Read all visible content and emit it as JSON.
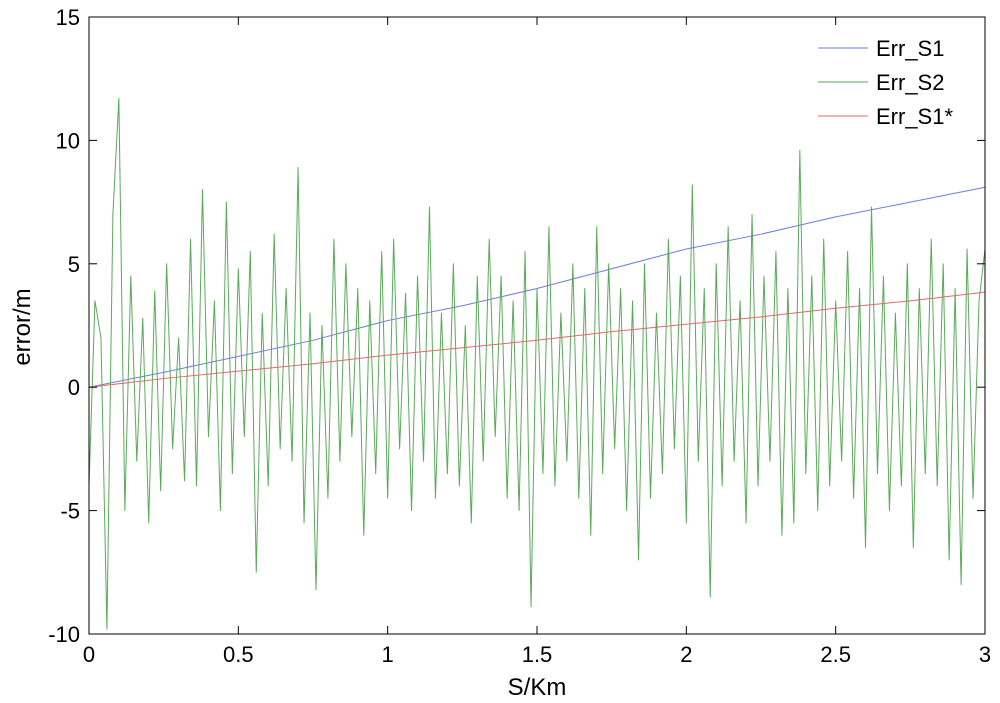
{
  "chart_data": {
    "type": "line",
    "xlabel": "S/Km",
    "ylabel": "error/m",
    "xlim": [
      0,
      3
    ],
    "ylim": [
      -10,
      15
    ],
    "xticks": [
      0,
      0.5,
      1,
      1.5,
      2,
      2.5,
      3
    ],
    "yticks": [
      -10,
      -5,
      0,
      5,
      10,
      15
    ],
    "xtick_labels": [
      "0",
      "0.5",
      "1",
      "1.5",
      "2",
      "2.5",
      "3"
    ],
    "ytick_labels": [
      "-10",
      "-5",
      "0",
      "5",
      "10",
      "15"
    ],
    "grid": false,
    "legend_position": "top-right",
    "series": [
      {
        "name": "Err_S1",
        "color": "#6b7fd9",
        "x": [
          0,
          0.25,
          0.5,
          0.75,
          1.0,
          1.25,
          1.5,
          1.75,
          2.0,
          2.25,
          2.5,
          2.75,
          3.0
        ],
        "y": [
          0,
          0.6,
          1.25,
          1.9,
          2.7,
          3.3,
          4.0,
          4.8,
          5.6,
          6.2,
          6.9,
          7.5,
          8.1
        ]
      },
      {
        "name": "Err_S2",
        "color": "#5aaa5a",
        "x": [
          0,
          0.02,
          0.04,
          0.06,
          0.08,
          0.1,
          0.12,
          0.14,
          0.16,
          0.18,
          0.2,
          0.22,
          0.24,
          0.26,
          0.28,
          0.3,
          0.32,
          0.34,
          0.36,
          0.38,
          0.4,
          0.42,
          0.44,
          0.46,
          0.48,
          0.5,
          0.52,
          0.54,
          0.56,
          0.58,
          0.6,
          0.62,
          0.64,
          0.66,
          0.68,
          0.7,
          0.72,
          0.74,
          0.76,
          0.78,
          0.8,
          0.82,
          0.84,
          0.86,
          0.88,
          0.9,
          0.92,
          0.94,
          0.96,
          0.98,
          1.0,
          1.02,
          1.04,
          1.06,
          1.08,
          1.1,
          1.12,
          1.14,
          1.16,
          1.18,
          1.2,
          1.22,
          1.24,
          1.26,
          1.28,
          1.3,
          1.32,
          1.34,
          1.36,
          1.38,
          1.4,
          1.42,
          1.44,
          1.46,
          1.48,
          1.5,
          1.52,
          1.54,
          1.56,
          1.58,
          1.6,
          1.62,
          1.64,
          1.66,
          1.68,
          1.7,
          1.72,
          1.74,
          1.76,
          1.78,
          1.8,
          1.82,
          1.84,
          1.86,
          1.88,
          1.9,
          1.92,
          1.94,
          1.96,
          1.98,
          2.0,
          2.02,
          2.04,
          2.06,
          2.08,
          2.1,
          2.12,
          2.14,
          2.16,
          2.18,
          2.2,
          2.22,
          2.24,
          2.26,
          2.28,
          2.3,
          2.32,
          2.34,
          2.36,
          2.38,
          2.4,
          2.42,
          2.44,
          2.46,
          2.48,
          2.5,
          2.52,
          2.54,
          2.56,
          2.58,
          2.6,
          2.62,
          2.64,
          2.66,
          2.68,
          2.7,
          2.72,
          2.74,
          2.76,
          2.78,
          2.8,
          2.82,
          2.84,
          2.86,
          2.88,
          2.9,
          2.92,
          2.94,
          2.96,
          2.98,
          3.0
        ],
        "y": [
          -4.0,
          3.5,
          2.0,
          -9.8,
          7.0,
          11.7,
          -5.0,
          4.5,
          -3.0,
          2.8,
          -5.5,
          3.9,
          -4.2,
          5.0,
          -2.5,
          2.0,
          -3.8,
          6.0,
          -4.0,
          8.0,
          -2.0,
          3.5,
          -5.0,
          7.5,
          -3.5,
          4.8,
          -2.0,
          5.5,
          -7.5,
          3.0,
          -4.0,
          6.2,
          -2.5,
          4.0,
          -3.0,
          8.9,
          -5.5,
          3.0,
          -8.2,
          2.5,
          -4.5,
          6.0,
          -3.0,
          5.0,
          -2.0,
          4.0,
          -6.0,
          3.5,
          -3.5,
          5.5,
          -4.5,
          6.0,
          -2.5,
          3.8,
          -5.0,
          4.5,
          -3.0,
          7.3,
          -4.5,
          3.0,
          -3.5,
          5.0,
          -4.0,
          2.5,
          -5.5,
          4.5,
          -3.0,
          6.0,
          -2.0,
          4.5,
          -4.5,
          3.5,
          -5.0,
          5.5,
          -8.9,
          4.0,
          -3.5,
          6.5,
          -4.0,
          3.0,
          -3.0,
          5.0,
          -4.5,
          4.0,
          -6.0,
          6.5,
          -3.5,
          5.0,
          -2.5,
          4.0,
          -5.0,
          3.5,
          -7.0,
          5.0,
          -4.5,
          3.0,
          -3.5,
          6.0,
          -2.5,
          4.5,
          -5.5,
          8.2,
          -3.0,
          4.0,
          -8.5,
          5.0,
          -4.0,
          6.5,
          -3.0,
          3.5,
          -5.5,
          7.0,
          -4.0,
          4.5,
          -3.0,
          5.5,
          -6.0,
          4.0,
          -5.5,
          9.6,
          -3.5,
          4.5,
          -5.0,
          6.0,
          -4.0,
          3.5,
          -3.0,
          5.5,
          -4.5,
          4.0,
          -6.5,
          7.3,
          -3.5,
          4.5,
          -5.0,
          3.0,
          -4.0,
          5.0,
          -6.5,
          4.0,
          -3.5,
          6.0,
          -4.0,
          5.0,
          -7.0,
          4.0,
          -8.0,
          5.6,
          -4.5,
          3.5,
          5.6
        ]
      },
      {
        "name": "Err_S1*",
        "color": "#e06a6a",
        "x": [
          0,
          0.25,
          0.5,
          0.75,
          1.0,
          1.25,
          1.5,
          1.75,
          2.0,
          2.25,
          2.5,
          2.75,
          3.0
        ],
        "y": [
          0,
          0.35,
          0.65,
          0.95,
          1.3,
          1.6,
          1.9,
          2.25,
          2.55,
          2.85,
          3.2,
          3.5,
          3.85
        ]
      }
    ]
  }
}
